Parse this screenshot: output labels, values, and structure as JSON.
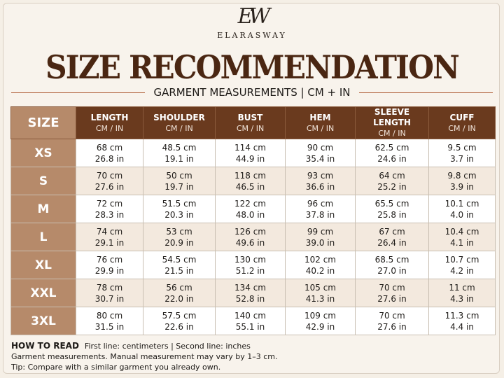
{
  "brand": {
    "monogram": "EW",
    "name": "ELARASWAY"
  },
  "title": "SIZE RECOMMENDATION",
  "subtitle": "GARMENT MEASUREMENTS | CM + IN",
  "table": {
    "size_header": "SIZE",
    "columns": [
      {
        "name": "LENGTH",
        "unit": "CM / IN"
      },
      {
        "name": "SHOULDER",
        "unit": "CM / IN"
      },
      {
        "name": "BUST",
        "unit": "CM / IN"
      },
      {
        "name": "HEM",
        "unit": "CM / IN"
      },
      {
        "name": "SLEEVE LENGTH",
        "unit": "CM / IN"
      },
      {
        "name": "CUFF",
        "unit": "CM / IN"
      }
    ],
    "rows": [
      {
        "size": "XS",
        "cells": [
          [
            "68 cm",
            "26.8 in"
          ],
          [
            "48.5 cm",
            "19.1 in"
          ],
          [
            "114 cm",
            "44.9 in"
          ],
          [
            "90 cm",
            "35.4 in"
          ],
          [
            "62.5 cm",
            "24.6 in"
          ],
          [
            "9.5 cm",
            "3.7 in"
          ]
        ]
      },
      {
        "size": "S",
        "cells": [
          [
            "70 cm",
            "27.6 in"
          ],
          [
            "50 cm",
            "19.7 in"
          ],
          [
            "118 cm",
            "46.5 in"
          ],
          [
            "93 cm",
            "36.6 in"
          ],
          [
            "64 cm",
            "25.2 in"
          ],
          [
            "9.8 cm",
            "3.9 in"
          ]
        ]
      },
      {
        "size": "M",
        "cells": [
          [
            "72 cm",
            "28.3 in"
          ],
          [
            "51.5 cm",
            "20.3 in"
          ],
          [
            "122 cm",
            "48.0 in"
          ],
          [
            "96 cm",
            "37.8 in"
          ],
          [
            "65.5 cm",
            "25.8 in"
          ],
          [
            "10.1 cm",
            "4.0 in"
          ]
        ]
      },
      {
        "size": "L",
        "cells": [
          [
            "74 cm",
            "29.1 in"
          ],
          [
            "53 cm",
            "20.9 in"
          ],
          [
            "126 cm",
            "49.6 in"
          ],
          [
            "99 cm",
            "39.0 in"
          ],
          [
            "67 cm",
            "26.4 in"
          ],
          [
            "10.4 cm",
            "4.1 in"
          ]
        ]
      },
      {
        "size": "XL",
        "cells": [
          [
            "76 cm",
            "29.9 in"
          ],
          [
            "54.5 cm",
            "21.5 in"
          ],
          [
            "130 cm",
            "51.2 in"
          ],
          [
            "102 cm",
            "40.2 in"
          ],
          [
            "68.5 cm",
            "27.0 in"
          ],
          [
            "10.7 cm",
            "4.2 in"
          ]
        ]
      },
      {
        "size": "XXL",
        "cells": [
          [
            "78 cm",
            "30.7 in"
          ],
          [
            "56 cm",
            "22.0 in"
          ],
          [
            "134 cm",
            "52.8 in"
          ],
          [
            "105 cm",
            "41.3 in"
          ],
          [
            "70 cm",
            "27.6 in"
          ],
          [
            "11 cm",
            "4.3 in"
          ]
        ]
      },
      {
        "size": "3XL",
        "cells": [
          [
            "80 cm",
            "31.5 in"
          ],
          [
            "57.5 cm",
            "22.6 in"
          ],
          [
            "140 cm",
            "55.1 in"
          ],
          [
            "109 cm",
            "42.9 in"
          ],
          [
            "70 cm",
            "27.6 in"
          ],
          [
            "11.3 cm",
            "4.4 in"
          ]
        ]
      }
    ]
  },
  "notes": {
    "heading": "HOW TO READ",
    "line1": "First line: centimeters  |  Second line: inches",
    "line2": "Garment measurements. Manual measurement may vary by 1–3 cm.",
    "line3": "Tip: Compare with a similar garment you already own."
  }
}
